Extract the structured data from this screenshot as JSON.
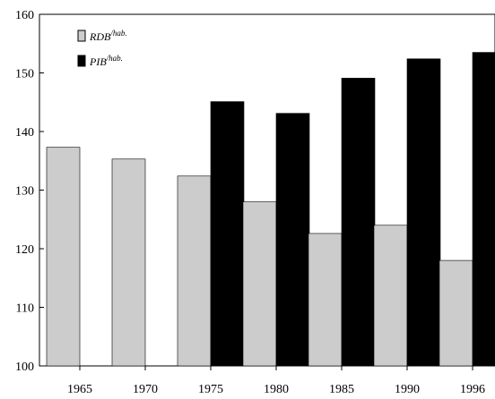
{
  "chart_data": {
    "type": "bar",
    "categories": [
      "1965",
      "1970",
      "1975",
      "1980",
      "1985",
      "1990",
      "1996"
    ],
    "series": [
      {
        "name": "RDB",
        "name_superscript": "/hab.",
        "color": "#cccccc",
        "values": [
          137.3,
          135.3,
          132.4,
          128.0,
          122.6,
          124.0,
          118.0
        ]
      },
      {
        "name": "PIB",
        "name_superscript": "/hab.",
        "color": "#000000",
        "values": [
          null,
          null,
          145.1,
          143.1,
          149.1,
          152.4,
          153.5
        ]
      }
    ],
    "ylim": [
      100,
      160
    ],
    "yticks": [
      "100",
      "110",
      "120",
      "130",
      "140",
      "150",
      "160"
    ],
    "legend_position": "top-left",
    "grid": false
  }
}
